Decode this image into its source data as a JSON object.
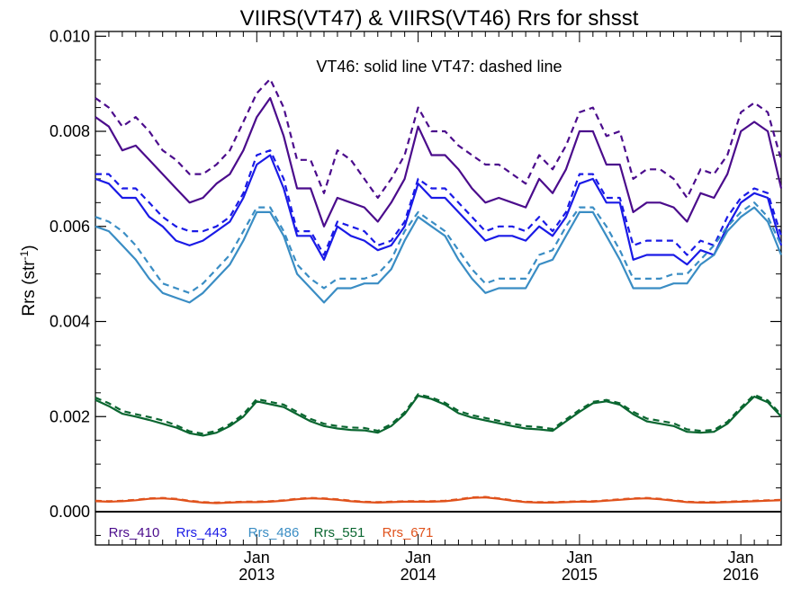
{
  "chart_data": {
    "type": "line",
    "title": "VIIRS(VT47) & VIIRS(VT46)  Rrs for shsst",
    "annotation": "VT46: solid line   VT47: dashed line",
    "ylabel_main": "Rrs (str",
    "ylabel_sup": "-1",
    "ylabel_close": ")",
    "ylim": [
      -0.0007,
      0.0101
    ],
    "yticks": [
      "0.000",
      "0.002",
      "0.004",
      "0.006",
      "0.008",
      "0.010"
    ],
    "ytick_values": [
      0.0,
      0.002,
      0.004,
      0.006,
      0.008,
      0.01
    ],
    "x_start": "2012-01",
    "x_end": "2016-04",
    "xticks": [
      {
        "month": "Jan",
        "year": "2013",
        "date": "2013-01"
      },
      {
        "month": "Jan",
        "year": "2014",
        "date": "2014-01"
      },
      {
        "month": "Jan",
        "year": "2015",
        "date": "2015-01"
      },
      {
        "month": "Jan",
        "year": "2016",
        "date": "2016-01"
      }
    ],
    "x": [
      "2012-01",
      "2012-02",
      "2012-03",
      "2012-04",
      "2012-05",
      "2012-06",
      "2012-07",
      "2012-08",
      "2012-09",
      "2012-10",
      "2012-11",
      "2012-12",
      "2013-01",
      "2013-02",
      "2013-03",
      "2013-04",
      "2013-05",
      "2013-06",
      "2013-07",
      "2013-08",
      "2013-09",
      "2013-10",
      "2013-11",
      "2013-12",
      "2014-01",
      "2014-02",
      "2014-03",
      "2014-04",
      "2014-05",
      "2014-06",
      "2014-07",
      "2014-08",
      "2014-09",
      "2014-10",
      "2014-11",
      "2014-12",
      "2015-01",
      "2015-02",
      "2015-03",
      "2015-04",
      "2015-05",
      "2015-06",
      "2015-07",
      "2015-08",
      "2015-09",
      "2015-10",
      "2015-11",
      "2015-12",
      "2016-01",
      "2016-02",
      "2016-03",
      "2016-04"
    ],
    "zero_line": true,
    "grid": false,
    "series": [
      {
        "name": "Rrs_410",
        "color": "#4b0c8c",
        "vt46": [
          0.0083,
          0.0081,
          0.0076,
          0.0077,
          0.0074,
          0.0071,
          0.0068,
          0.0065,
          0.0066,
          0.0069,
          0.0071,
          0.0076,
          0.0083,
          0.0087,
          0.0079,
          0.0068,
          0.0068,
          0.006,
          0.0066,
          0.0065,
          0.0064,
          0.0061,
          0.0065,
          0.007,
          0.0081,
          0.0075,
          0.0075,
          0.0072,
          0.0068,
          0.0065,
          0.0066,
          0.0065,
          0.0064,
          0.007,
          0.0067,
          0.0072,
          0.008,
          0.008,
          0.0073,
          0.0073,
          0.0063,
          0.0065,
          0.0065,
          0.0064,
          0.0061,
          0.0067,
          0.0066,
          0.0071,
          0.008,
          0.0082,
          0.008,
          0.0068
        ],
        "vt47": [
          0.0087,
          0.0085,
          0.0081,
          0.0083,
          0.008,
          0.0076,
          0.0074,
          0.0071,
          0.0071,
          0.0073,
          0.0076,
          0.0082,
          0.0088,
          0.0091,
          0.0085,
          0.0074,
          0.0074,
          0.0067,
          0.0076,
          0.0074,
          0.007,
          0.0066,
          0.007,
          0.0075,
          0.0085,
          0.008,
          0.008,
          0.0077,
          0.0075,
          0.0073,
          0.0073,
          0.0071,
          0.0069,
          0.0075,
          0.0072,
          0.0077,
          0.0084,
          0.0085,
          0.0079,
          0.008,
          0.007,
          0.0072,
          0.0072,
          0.007,
          0.0066,
          0.0072,
          0.0071,
          0.0075,
          0.0084,
          0.0086,
          0.0084,
          0.0074
        ]
      },
      {
        "name": "Rrs_443",
        "color": "#1a1ae6",
        "vt46": [
          0.007,
          0.0069,
          0.0066,
          0.0066,
          0.0062,
          0.006,
          0.0057,
          0.0056,
          0.0057,
          0.0059,
          0.0061,
          0.0066,
          0.0073,
          0.0075,
          0.0068,
          0.0058,
          0.0058,
          0.0053,
          0.006,
          0.0058,
          0.0057,
          0.0055,
          0.0056,
          0.006,
          0.0069,
          0.0066,
          0.0066,
          0.0063,
          0.006,
          0.0057,
          0.0058,
          0.0058,
          0.0057,
          0.006,
          0.0058,
          0.0062,
          0.0069,
          0.007,
          0.0065,
          0.0065,
          0.0053,
          0.0054,
          0.0054,
          0.0054,
          0.0052,
          0.0055,
          0.0054,
          0.006,
          0.0065,
          0.0067,
          0.0066,
          0.0056
        ],
        "vt47": [
          0.0071,
          0.0071,
          0.0068,
          0.0068,
          0.0065,
          0.0062,
          0.006,
          0.0059,
          0.0059,
          0.006,
          0.0062,
          0.0067,
          0.0075,
          0.0076,
          0.007,
          0.0059,
          0.0059,
          0.0054,
          0.0061,
          0.006,
          0.0059,
          0.0056,
          0.0057,
          0.0061,
          0.007,
          0.0068,
          0.0068,
          0.0065,
          0.0062,
          0.0059,
          0.006,
          0.006,
          0.0059,
          0.0062,
          0.0059,
          0.0063,
          0.0071,
          0.0071,
          0.0066,
          0.0066,
          0.0056,
          0.0057,
          0.0057,
          0.0057,
          0.0054,
          0.0057,
          0.0056,
          0.0062,
          0.0066,
          0.0068,
          0.0067,
          0.0058
        ]
      },
      {
        "name": "Rrs_486",
        "color": "#3a8dc4",
        "vt46": [
          0.006,
          0.0059,
          0.0056,
          0.0053,
          0.0049,
          0.0046,
          0.0045,
          0.0044,
          0.0046,
          0.0049,
          0.0052,
          0.0057,
          0.0063,
          0.0063,
          0.0058,
          0.005,
          0.0047,
          0.0044,
          0.0047,
          0.0047,
          0.0048,
          0.0048,
          0.0051,
          0.0057,
          0.0062,
          0.006,
          0.0058,
          0.0053,
          0.0049,
          0.0046,
          0.0047,
          0.0047,
          0.0047,
          0.0052,
          0.0053,
          0.0058,
          0.0063,
          0.0063,
          0.0058,
          0.0053,
          0.0047,
          0.0047,
          0.0047,
          0.0048,
          0.0048,
          0.0052,
          0.0054,
          0.0059,
          0.0062,
          0.0064,
          0.0061,
          0.0054
        ],
        "vt47": [
          0.0062,
          0.0061,
          0.0059,
          0.0056,
          0.0052,
          0.0048,
          0.0047,
          0.0046,
          0.0048,
          0.0051,
          0.0054,
          0.0059,
          0.0064,
          0.0064,
          0.0059,
          0.0052,
          0.0049,
          0.0047,
          0.0049,
          0.0049,
          0.0049,
          0.005,
          0.0053,
          0.0059,
          0.0063,
          0.0061,
          0.0059,
          0.0055,
          0.0051,
          0.0048,
          0.0049,
          0.0049,
          0.0049,
          0.0054,
          0.0055,
          0.006,
          0.0064,
          0.0064,
          0.006,
          0.0055,
          0.0049,
          0.0049,
          0.0049,
          0.005,
          0.005,
          0.0053,
          0.0056,
          0.006,
          0.0063,
          0.0065,
          0.0062,
          0.0056
        ]
      },
      {
        "name": "Rrs_551",
        "color": "#0a6630",
        "vt46": [
          0.00235,
          0.00222,
          0.00206,
          0.002,
          0.00193,
          0.00185,
          0.00177,
          0.00165,
          0.0016,
          0.00166,
          0.0018,
          0.002,
          0.00232,
          0.00226,
          0.0022,
          0.00205,
          0.0019,
          0.0018,
          0.00175,
          0.00172,
          0.00171,
          0.00166,
          0.0018,
          0.00205,
          0.00244,
          0.00237,
          0.00225,
          0.00207,
          0.00198,
          0.00192,
          0.00186,
          0.0018,
          0.00175,
          0.00173,
          0.0017,
          0.0019,
          0.0021,
          0.00228,
          0.00232,
          0.00225,
          0.00205,
          0.0019,
          0.00185,
          0.0018,
          0.00168,
          0.00166,
          0.00168,
          0.00185,
          0.00215,
          0.00242,
          0.0023,
          0.002
        ],
        "vt47": [
          0.0024,
          0.00228,
          0.00212,
          0.00205,
          0.00199,
          0.00192,
          0.00182,
          0.00169,
          0.00164,
          0.0017,
          0.00184,
          0.00205,
          0.00237,
          0.00231,
          0.00225,
          0.0021,
          0.00195,
          0.00185,
          0.0018,
          0.00177,
          0.00176,
          0.0017,
          0.00184,
          0.00209,
          0.00247,
          0.0024,
          0.00229,
          0.00212,
          0.00203,
          0.00197,
          0.00191,
          0.00185,
          0.0018,
          0.00178,
          0.00174,
          0.00194,
          0.00214,
          0.00231,
          0.00235,
          0.00228,
          0.0021,
          0.00196,
          0.00191,
          0.00186,
          0.00173,
          0.0017,
          0.00172,
          0.00189,
          0.00219,
          0.00246,
          0.00234,
          0.00204
        ]
      },
      {
        "name": "Rrs_671",
        "color": "#e0521c",
        "vt46": [
          0.00022,
          0.00021,
          0.00022,
          0.00024,
          0.00027,
          0.00028,
          0.00026,
          0.00022,
          0.00019,
          0.00018,
          0.00019,
          0.0002,
          0.0002,
          0.00021,
          0.00023,
          0.00026,
          0.00028,
          0.00027,
          0.00025,
          0.00022,
          0.0002,
          0.00019,
          0.0002,
          0.00021,
          0.00021,
          0.00021,
          0.00022,
          0.00025,
          0.00029,
          0.0003,
          0.00027,
          0.00023,
          0.0002,
          0.00019,
          0.00019,
          0.0002,
          0.00021,
          0.00021,
          0.00023,
          0.00025,
          0.00027,
          0.00028,
          0.00026,
          0.00023,
          0.0002,
          0.00019,
          0.00019,
          0.0002,
          0.00021,
          0.00022,
          0.00023,
          0.00024
        ],
        "vt47": [
          0.00023,
          0.00022,
          0.00023,
          0.00025,
          0.00028,
          0.00029,
          0.00027,
          0.00023,
          0.0002,
          0.00019,
          0.0002,
          0.00021,
          0.00021,
          0.00022,
          0.00024,
          0.00027,
          0.00029,
          0.00028,
          0.00026,
          0.00023,
          0.00021,
          0.0002,
          0.00021,
          0.00022,
          0.00022,
          0.00022,
          0.00023,
          0.00026,
          0.0003,
          0.00031,
          0.00028,
          0.00024,
          0.00021,
          0.0002,
          0.0002,
          0.00021,
          0.00022,
          0.00022,
          0.00024,
          0.00026,
          0.00028,
          0.00029,
          0.00027,
          0.00024,
          0.00021,
          0.0002,
          0.0002,
          0.00021,
          0.00022,
          0.00023,
          0.00024,
          0.00025
        ]
      }
    ]
  }
}
